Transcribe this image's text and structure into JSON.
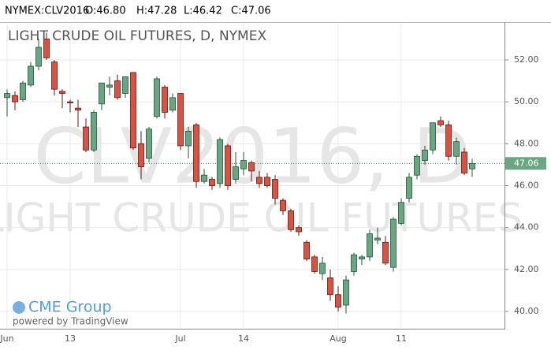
{
  "header": {
    "symbol": "NYMEX:CLV2016",
    "open": "O:46.80",
    "high": "H:47.28",
    "low": "L:46.42",
    "close": "C:47.06"
  },
  "chart_data": {
    "type": "candlestick",
    "title": "LIGHT CRUDE OIL FUTURES, D, NYMEX",
    "watermark": [
      "CLV2016, D",
      "LIGHT CRUDE OIL FUTURES"
    ],
    "logo": "CME Group",
    "credit": "powered by TradingView",
    "categories": [
      "Jun",
      null,
      null,
      null,
      null,
      null,
      null,
      null,
      "13",
      null,
      null,
      null,
      null,
      null,
      null,
      null,
      null,
      null,
      null,
      null,
      null,
      null,
      "Jul",
      null,
      null,
      null,
      null,
      null,
      null,
      null,
      "14",
      null,
      null,
      null,
      null,
      null,
      null,
      null,
      null,
      null,
      null,
      null,
      "Aug",
      null,
      null,
      null,
      null,
      null,
      null,
      null,
      "11",
      null,
      null,
      null,
      null,
      null,
      null,
      null,
      null,
      null
    ],
    "open": [
      50.2,
      50.3,
      50.1,
      50.8,
      51.7,
      53.0,
      51.9,
      50.5,
      50.0,
      49.7,
      48.8,
      47.7,
      49.9,
      50.7,
      51.0,
      50.4,
      51.4,
      48.0,
      47.3,
      49.3,
      50.7,
      49.6,
      50.4,
      47.9,
      48.9,
      46.2,
      46.3,
      46.1,
      47.9,
      46.3,
      46.8,
      47.1,
      46.4,
      46.4,
      46.3,
      45.3,
      44.8,
      44.0,
      43.3,
      42.6,
      41.8,
      41.6,
      40.8,
      40.3,
      41.9,
      42.5,
      42.6,
      43.4,
      43.3,
      42.1,
      44.2,
      45.4,
      46.5,
      47.2,
      47.7,
      49.1,
      48.9,
      47.4,
      47.6,
      46.8
    ],
    "high": [
      50.6,
      50.5,
      51.0,
      51.9,
      53.0,
      53.3,
      52.0,
      50.6,
      50.1,
      50.1,
      49.2,
      49.6,
      50.9,
      51.2,
      51.3,
      51.2,
      51.4,
      48.6,
      48.8,
      51.2,
      50.8,
      50.4,
      50.4,
      48.8,
      49.0,
      46.8,
      46.4,
      48.3,
      48.0,
      47.6,
      47.6,
      47.2,
      46.7,
      46.6,
      46.5,
      45.4,
      44.9,
      44.1,
      43.4,
      42.7,
      42.6,
      42.0,
      41.2,
      41.7,
      42.8,
      42.7,
      43.9,
      44.0,
      43.6,
      44.5,
      45.4,
      46.6,
      47.5,
      47.9,
      49.0,
      49.3,
      49.1,
      48.3,
      47.8,
      47.28
    ],
    "low": [
      49.3,
      49.6,
      50.0,
      50.7,
      51.5,
      52.0,
      50.3,
      49.7,
      49.5,
      48.8,
      47.6,
      47.6,
      49.6,
      50.3,
      50.1,
      50.2,
      47.7,
      46.3,
      47.1,
      49.2,
      49.2,
      49.5,
      47.7,
      47.3,
      45.9,
      46.1,
      45.8,
      45.9,
      45.8,
      46.1,
      46.5,
      46.2,
      45.9,
      45.9,
      45.1,
      44.6,
      43.8,
      43.6,
      42.4,
      41.8,
      41.5,
      40.5,
      40.0,
      39.9,
      41.7,
      42.2,
      42.4,
      43.2,
      42.2,
      41.9,
      44.1,
      45.2,
      46.3,
      47.0,
      47.5,
      48.8,
      47.2,
      47.0,
      46.5,
      46.42
    ],
    "close": [
      50.4,
      50.0,
      50.9,
      51.7,
      52.6,
      52.1,
      50.6,
      50.4,
      49.95,
      49.6,
      47.7,
      49.5,
      50.9,
      50.8,
      50.2,
      51.2,
      47.8,
      46.9,
      48.7,
      51.1,
      49.5,
      50.2,
      47.9,
      48.6,
      46.2,
      46.5,
      46.0,
      48.2,
      46.0,
      46.9,
      47.2,
      46.7,
      46.1,
      46.0,
      45.4,
      44.8,
      43.9,
      43.8,
      42.5,
      41.9,
      42.3,
      40.8,
      40.2,
      41.5,
      42.7,
      42.6,
      43.7,
      43.5,
      42.3,
      44.4,
      45.2,
      46.4,
      47.4,
      47.7,
      49.0,
      48.9,
      47.4,
      48.1,
      46.6,
      47.06
    ],
    "up_color": "#6ba583",
    "down_color": "#d75442",
    "last_price": 47.06,
    "ylim": [
      39.21,
      53.73
    ],
    "yticks": [
      {
        "value": 40,
        "label": "40.00"
      },
      {
        "value": 42,
        "label": "42.00"
      },
      {
        "value": 44,
        "label": "44.00"
      },
      {
        "value": 46,
        "label": "46.00"
      },
      {
        "value": 48,
        "label": "48.00"
      },
      {
        "value": 50,
        "label": "50.00"
      },
      {
        "value": 52,
        "label": "52.00"
      }
    ],
    "grid": true
  }
}
